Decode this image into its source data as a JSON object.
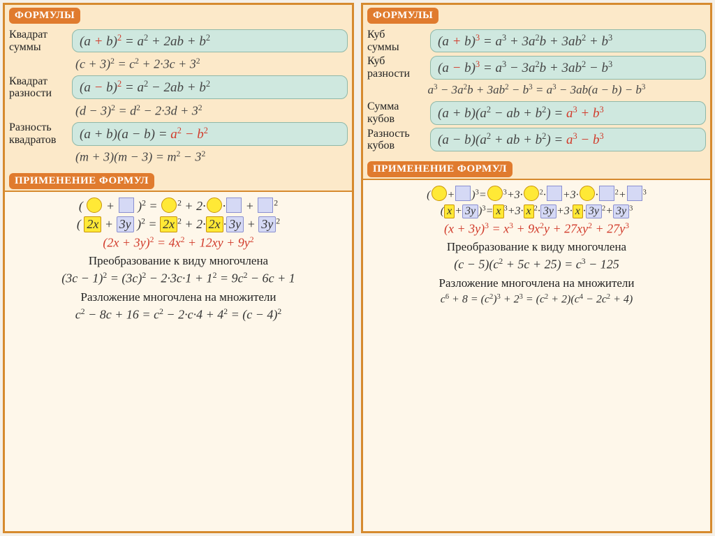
{
  "colors": {
    "panel_bg": "#fce9c9",
    "panel_border": "#d68a2e",
    "header_bg": "#e07b2e",
    "header_fg": "#ffffff",
    "formula_box_bg": "#cfe8df",
    "formula_box_border": "#8fb8a8",
    "app_bg": "#fef7ea",
    "highlight_red": "#d13a2a",
    "circle_fill": "#ffe936",
    "circle_border": "#c9940a",
    "square_fill": "#d5d9f5",
    "square_border": "#8a8fd0"
  },
  "fontsizes": {
    "header": 15,
    "label": 16,
    "formula": 19,
    "example": 18,
    "app_line": 18,
    "heading": 17
  },
  "left": {
    "headers": {
      "formulas": "ФОРМУЛЫ",
      "application": "ПРИМЕНЕНИЕ ФОРМУЛ"
    },
    "rows": [
      {
        "label_lines": [
          "Квадрат",
          "суммы"
        ],
        "boxed_html": "(<i>a</i> <span class='red'>+</span> <i>b</i>)<sup class='rednum'>2</sup> = <i>a</i><sup>2</sup> + 2<i>ab</i> + <i>b</i><sup>2</sup>",
        "example_html": "(<i>c</i> + 3)<sup>2</sup> = <i>c</i><sup>2</sup> + 2·3<i>c</i> + 3<sup>2</sup>"
      },
      {
        "label_lines": [
          "Квадрат",
          "разности"
        ],
        "boxed_html": "(<i>a</i> <span class='red'>−</span> <i>b</i>)<sup class='rednum'>2</sup> = <i>a</i><sup>2</sup> − 2<i>ab</i> + <i>b</i><sup>2</sup>",
        "example_html": "(<i>d</i> − 3)<sup>2</sup> = <i>d</i><sup>2</sup> − 2·3<i>d</i> + 3<sup>2</sup>"
      },
      {
        "label_lines": [
          "Разность",
          "квадратов"
        ],
        "boxed_html": "(<i>a</i> + <i>b</i>)(<i>a</i> − <i>b</i>) = <span class='red'><i>a</i><sup>2</sup> − <i>b</i><sup>2</sup></span>",
        "example_html": "(<i>m</i> + 3)(<i>m</i> − 3) = <i>m</i><sup>2</sup> − 3<sup>2</sup>"
      }
    ],
    "app": {
      "line1_html": "( <span class='circ'></span> + <span class='sq'></span> )<sup>2</sup> = <span class='circ'></span><sup>2</sup> + 2·<span class='circ'></span>·<span class='sq'></span> + <span class='sq'></span><sup>2</sup>",
      "line2_html": "( <span class='ybox'>2<i>x</i></span> + <span class='bbox'>3<i>y</i></span> )<sup>2</sup> = <span class='ybox'>2<i>x</i></span><sup>2</sup> + 2·<span class='ybox'>2<i>x</i></span>·<span class='bbox'>3<i>y</i></span> + <span class='bbox'>3<i>y</i></span><sup>2</sup>",
      "line3_html": "(2<i>x</i> + 3<i>y</i>)<sup>2</sup> = 4<i>x</i><sup>2</sup> + 12<i>xy</i> + 9<i>y</i><sup>2</sup>",
      "heading1": "Преобразование к виду многочлена",
      "line4_html": "(3<i>c</i> − 1)<sup>2</sup> = (3<i>c</i>)<sup>2</sup> − 2·3<i>c</i>·1 + 1<sup>2</sup> = 9<i>c</i><sup>2</sup> − 6<i>c</i> + 1",
      "heading2": "Разложение многочлена на множители",
      "line5_html": "<i>c</i><sup>2</sup> − 8<i>c</i> + 16 = <i>c</i><sup>2</sup> − 2·<i>c</i>·4 + 4<sup>2</sup> = (<i>c</i> − 4)<sup>2</sup>"
    }
  },
  "right": {
    "headers": {
      "formulas": "ФОРМУЛЫ",
      "application": "ПРИМЕНЕНИЕ ФОРМУЛ"
    },
    "rows": [
      {
        "label_lines": [
          "Куб",
          "суммы"
        ],
        "boxed_html": "(<i>a</i> <span class='red'>+</span> <i>b</i>)<sup class='rednum'>3</sup> = <i>a</i><sup>3</sup> + 3<i>a</i><sup>2</sup><i>b</i> + 3<i>ab</i><sup>2</sup> + <i>b</i><sup>3</sup>"
      },
      {
        "label_lines": [
          "Куб",
          "разности"
        ],
        "boxed_html": "(<i>a</i> <span class='red'>−</span> <i>b</i>)<sup class='rednum'>3</sup> = <i>a</i><sup>3</sup> − 3<i>a</i><sup>2</sup><i>b</i> + 3<i>ab</i><sup>2</sup> − <i>b</i><sup>3</sup>",
        "full_example_html": "<i>a</i><sup>3</sup> − 3<i>a</i><sup>2</sup><i>b</i> + 3<i>ab</i><sup>2</sup> − <i>b</i><sup>3</sup> = <i>a</i><sup>3</sup> − 3<i>ab</i>(<i>a</i> − <i>b</i>) − <i>b</i><sup>3</sup>"
      },
      {
        "label_lines": [
          "Сумма",
          "кубов"
        ],
        "boxed_html": "(<i>a</i> + <i>b</i>)(<i>a</i><sup>2</sup> − <i>ab</i> + <i>b</i><sup>2</sup>) = <span class='red'><i>a</i><sup>3</sup> + <i>b</i><sup>3</sup></span>"
      },
      {
        "label_lines": [
          "Разность",
          "кубов"
        ],
        "boxed_html": "(<i>a</i> − <i>b</i>)(<i>a</i><sup>2</sup> + <i>ab</i> + <i>b</i><sup>2</sup>) = <span class='red'><i>a</i><sup>3</sup> − <i>b</i><sup>3</sup></span>"
      }
    ],
    "app": {
      "line1_html": "(<span class='circ'></span>+<span class='sq'></span>)<sup>3</sup>=<span class='circ'></span><sup>3</sup>+3·<span class='circ'></span><sup>2</sup>·<span class='sq'></span>+3·<span class='circ'></span>·<span class='sq'></span><sup>2</sup>+<span class='sq'></span><sup>3</sup>",
      "line2_html": "(<span class='ybox'><i>x</i></span>+<span class='bbox'>3<i>y</i></span>)<sup>3</sup>=<span class='ybox'><i>x</i></span><sup>3</sup>+3·<span class='ybox'><i>x</i></span><sup>2</sup>·<span class='bbox'>3<i>y</i></span>+3·<span class='ybox'><i>x</i></span>·<span class='bbox'>3<i>y</i></span><sup>2</sup>+<span class='bbox'>3<i>y</i></span><sup>3</sup>",
      "line3_html": "(<i>x</i> + 3<i>y</i>)<sup>3</sup> = <i>x</i><sup>3</sup> + 9<i>x</i><sup>2</sup><i>y</i> + 27<i>xy</i><sup>2</sup> + 27<i>y</i><sup>3</sup>",
      "heading1": "Преобразование к виду многочлена",
      "line4_html": "(<i>c</i> − 5)(<i>c</i><sup>2</sup> + 5<i>c</i> + 25) = <i>c</i><sup>3</sup> − 125",
      "heading2": "Разложение многочлена на множители",
      "line5_html": "<i>c</i><sup>6</sup> + 8 = (<i>c</i><sup>2</sup>)<sup>3</sup> + 2<sup>3</sup> = (<i>c</i><sup>2</sup> + 2)(<i>c</i><sup>4</sup> − 2<i>c</i><sup>2</sup> + 4)"
    }
  }
}
